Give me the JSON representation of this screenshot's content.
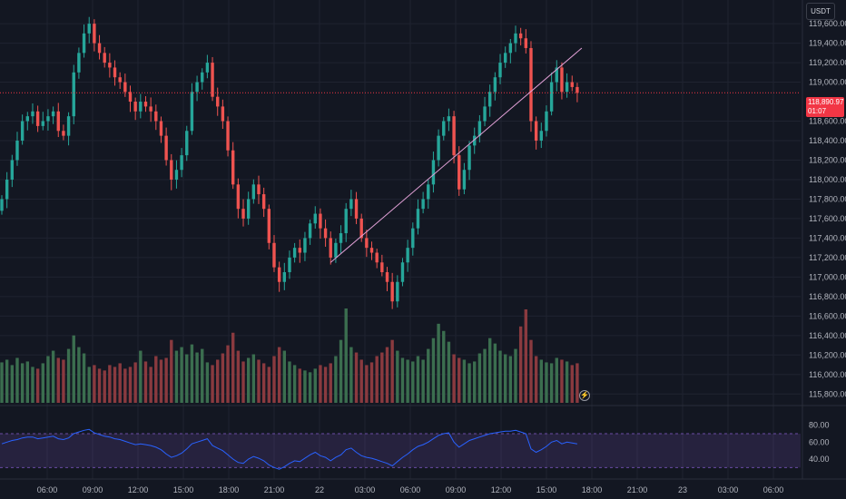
{
  "header": {
    "currency": "USDT"
  },
  "price_axis": {
    "labels": [
      "119,600.00",
      "119,400.00",
      "119,200.00",
      "119,000.00",
      "118,600.00",
      "118,400.00",
      "118,200.00",
      "118,000.00",
      "117,800.00",
      "117,600.00",
      "117,400.00",
      "117,200.00",
      "117,000.00",
      "116,800.00",
      "116,600.00",
      "116,400.00",
      "116,200.00",
      "116,000.00",
      "115,800.00"
    ],
    "values": [
      119600,
      119400,
      119200,
      119000,
      118600,
      118400,
      118200,
      118000,
      117800,
      117600,
      117400,
      117200,
      117000,
      116800,
      116600,
      116400,
      116200,
      116000,
      115800
    ]
  },
  "last_price": {
    "value_label": "118,890.97",
    "countdown": "01:07",
    "value": 118890.97
  },
  "rsi_axis": {
    "labels": [
      "80.00",
      "60.00",
      "40.00"
    ],
    "values": [
      80,
      60,
      40
    ]
  },
  "time_axis": {
    "labels": [
      "06:00",
      "09:00",
      "12:00",
      "15:00",
      "18:00",
      "21:00",
      "22",
      "03:00",
      "06:00",
      "09:00",
      "12:00",
      "15:00",
      "18:00",
      "21:00",
      "23",
      "03:00",
      "06:00"
    ]
  },
  "colors": {
    "up": "#26a69a",
    "down": "#ef5350",
    "vol_up": "#3b6e4f",
    "vol_down": "#8a3a3f",
    "rsi_line": "#2962ff",
    "rsi_band": "#7e57c2",
    "trend_line": "#e1a0d6",
    "price_line": "#f23645"
  },
  "chart_data": {
    "type": "candlestick",
    "ylim": [
      115700,
      119750
    ],
    "rsi_ylim": [
      25,
      85
    ],
    "trend_line": {
      "start_candle": 64,
      "start_price": 117150,
      "end_candle": 112,
      "end_price": 119350
    },
    "closes": [
      117800,
      118000,
      118200,
      118400,
      118600,
      118650,
      118700,
      118550,
      118600,
      118650,
      118700,
      118500,
      118450,
      118650,
      119100,
      119300,
      119500,
      119600,
      119400,
      119300,
      119200,
      119150,
      119050,
      119000,
      118900,
      118800,
      118700,
      118800,
      118750,
      118700,
      118600,
      118450,
      118200,
      118000,
      118100,
      118250,
      118500,
      118900,
      119000,
      119100,
      119200,
      118850,
      118750,
      118600,
      118300,
      117950,
      117700,
      117600,
      117800,
      117950,
      117850,
      117700,
      117350,
      117100,
      116950,
      117050,
      117200,
      117300,
      117250,
      117400,
      117550,
      117650,
      117500,
      117400,
      117200,
      117350,
      117450,
      117700,
      117800,
      117600,
      117400,
      117300,
      117250,
      117150,
      117050,
      116950,
      116750,
      116950,
      117150,
      117300,
      117500,
      117700,
      117800,
      117950,
      118200,
      118450,
      118600,
      118650,
      118250,
      117900,
      118100,
      118350,
      118450,
      118600,
      118750,
      118900,
      119050,
      119200,
      119300,
      119400,
      119500,
      119450,
      119350,
      118600,
      118400,
      118500,
      118700,
      119000,
      119150,
      118900,
      119000,
      118950,
      118890
    ],
    "volumes": [
      45,
      48,
      42,
      50,
      44,
      46,
      40,
      38,
      44,
      52,
      58,
      50,
      48,
      60,
      75,
      62,
      55,
      40,
      42,
      38,
      36,
      42,
      40,
      44,
      38,
      40,
      45,
      58,
      46,
      40,
      52,
      48,
      50,
      70,
      58,
      62,
      54,
      65,
      56,
      60,
      45,
      42,
      48,
      55,
      64,
      78,
      58,
      46,
      50,
      54,
      48,
      44,
      40,
      52,
      62,
      58,
      46,
      42,
      38,
      36,
      34,
      38,
      42,
      40,
      44,
      52,
      70,
      105,
      62,
      56,
      48,
      42,
      45,
      52,
      56,
      62,
      70,
      58,
      50,
      48,
      46,
      52,
      48,
      60,
      72,
      88,
      80,
      68,
      54,
      50,
      48,
      44,
      46,
      55,
      60,
      72,
      66,
      58,
      54,
      52,
      60,
      85,
      104,
      70,
      52,
      48,
      45,
      44,
      50,
      48,
      46,
      42,
      44
    ],
    "rsi": [
      58,
      60,
      62,
      63,
      65,
      66,
      66,
      64,
      65,
      66,
      67,
      64,
      63,
      65,
      70,
      72,
      74,
      75,
      71,
      69,
      67,
      66,
      64,
      63,
      61,
      59,
      57,
      58,
      57,
      56,
      54,
      51,
      46,
      42,
      44,
      47,
      52,
      58,
      60,
      62,
      64,
      56,
      53,
      50,
      45,
      40,
      36,
      35,
      40,
      43,
      41,
      38,
      33,
      30,
      28,
      31,
      35,
      38,
      37,
      41,
      45,
      48,
      44,
      42,
      38,
      42,
      45,
      51,
      53,
      48,
      44,
      42,
      41,
      39,
      37,
      35,
      32,
      37,
      42,
      46,
      51,
      55,
      57,
      60,
      64,
      68,
      70,
      71,
      60,
      54,
      58,
      62,
      64,
      66,
      68,
      70,
      71,
      72,
      73,
      73,
      74,
      72,
      70,
      52,
      48,
      51,
      55,
      60,
      62,
      58,
      60,
      59,
      58
    ]
  }
}
